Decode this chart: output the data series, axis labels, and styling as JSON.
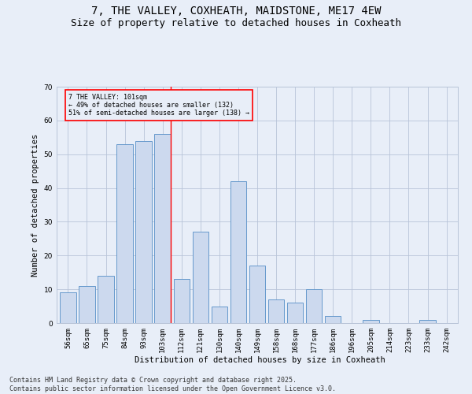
{
  "title": "7, THE VALLEY, COXHEATH, MAIDSTONE, ME17 4EW",
  "subtitle": "Size of property relative to detached houses in Coxheath",
  "xlabel": "Distribution of detached houses by size in Coxheath",
  "ylabel": "Number of detached properties",
  "bar_color": "#ccd9ee",
  "bar_edge_color": "#6699cc",
  "background_color": "#e8eef8",
  "categories": [
    "56sqm",
    "65sqm",
    "75sqm",
    "84sqm",
    "93sqm",
    "103sqm",
    "112sqm",
    "121sqm",
    "130sqm",
    "140sqm",
    "149sqm",
    "158sqm",
    "168sqm",
    "177sqm",
    "186sqm",
    "196sqm",
    "205sqm",
    "214sqm",
    "223sqm",
    "233sqm",
    "242sqm"
  ],
  "values": [
    9,
    11,
    14,
    53,
    54,
    56,
    13,
    27,
    5,
    42,
    17,
    7,
    6,
    10,
    2,
    0,
    1,
    0,
    0,
    1,
    0
  ],
  "ylim": [
    0,
    70
  ],
  "yticks": [
    0,
    10,
    20,
    30,
    40,
    50,
    60,
    70
  ],
  "redline_index": 5,
  "annotation_title": "7 THE VALLEY: 101sqm",
  "annotation_line1": "← 49% of detached houses are smaller (132)",
  "annotation_line2": "51% of semi-detached houses are larger (138) →",
  "footer_line1": "Contains HM Land Registry data © Crown copyright and database right 2025.",
  "footer_line2": "Contains public sector information licensed under the Open Government Licence v3.0.",
  "grid_color": "#b8c4d8",
  "title_fontsize": 10,
  "subtitle_fontsize": 9,
  "axis_fontsize": 7.5,
  "tick_fontsize": 6.5,
  "footer_fontsize": 6
}
